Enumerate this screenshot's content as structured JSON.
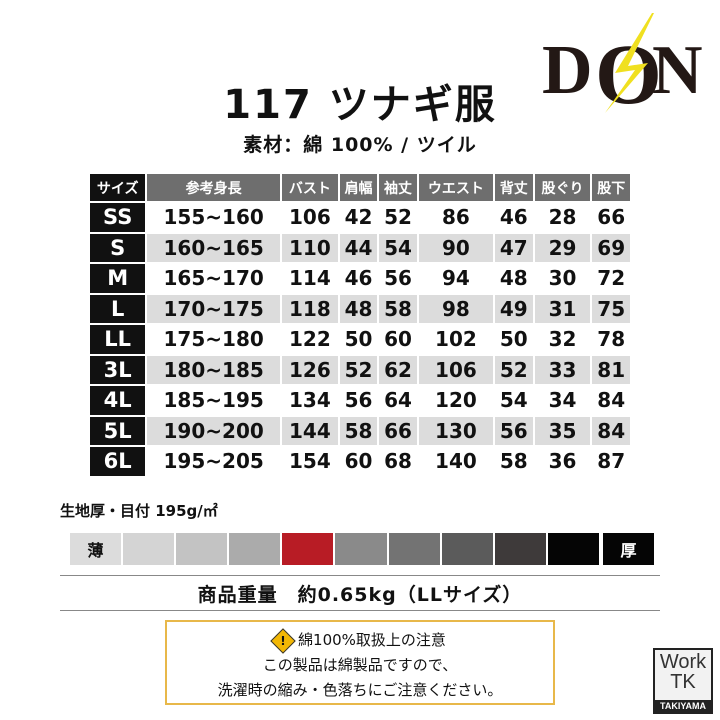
{
  "logo": {
    "brand": "DON",
    "accent": "#f0e020"
  },
  "title": "117 ツナギ服",
  "material": "素材：綿 100% / ツイル",
  "size_table": {
    "headers": [
      "サイズ",
      "参考身長",
      "バスト",
      "肩幅",
      "袖丈",
      "ウエスト",
      "背丈",
      "股ぐり",
      "股下"
    ],
    "rows": [
      [
        "SS",
        "155~160",
        "106",
        "42",
        "52",
        "86",
        "46",
        "28",
        "66"
      ],
      [
        "S",
        "160~165",
        "110",
        "44",
        "54",
        "90",
        "47",
        "29",
        "69"
      ],
      [
        "M",
        "165~170",
        "114",
        "46",
        "56",
        "94",
        "48",
        "30",
        "72"
      ],
      [
        "L",
        "170~175",
        "118",
        "48",
        "58",
        "98",
        "49",
        "31",
        "75"
      ],
      [
        "LL",
        "175~180",
        "122",
        "50",
        "60",
        "102",
        "50",
        "32",
        "78"
      ],
      [
        "3L",
        "180~185",
        "126",
        "52",
        "62",
        "106",
        "52",
        "33",
        "81"
      ],
      [
        "4L",
        "185~195",
        "134",
        "56",
        "64",
        "120",
        "54",
        "34",
        "84"
      ],
      [
        "5L",
        "190~200",
        "144",
        "58",
        "66",
        "130",
        "56",
        "35",
        "84"
      ],
      [
        "6L",
        "195~205",
        "154",
        "60",
        "68",
        "140",
        "58",
        "36",
        "87"
      ]
    ]
  },
  "thickness": {
    "label": "生地厚・目付 195g/㎡",
    "thin_label": "薄",
    "thick_label": "厚",
    "colors": [
      "#dcdcdc",
      "#d4d4d4",
      "#c3c3c3",
      "#ababab",
      "#b81c25",
      "#8a8a8a",
      "#737373",
      "#5b5b5b",
      "#3e3a3a",
      "#050505",
      "#050505"
    ],
    "selected_level": 5,
    "levels": 11
  },
  "weight": "商品重量　約0.65kg（LLサイズ）",
  "notice": {
    "icon": "warning-icon",
    "heading": "綿100%取扱上の注意",
    "line1": "この製品は綿製品ですので、",
    "line2": "洗濯時の縮み・色落ちにご注意ください。",
    "border_color": "#e8b84a"
  },
  "worktk": {
    "line1": "Work",
    "line2": "TK",
    "line3": "TAKIYAMA"
  }
}
